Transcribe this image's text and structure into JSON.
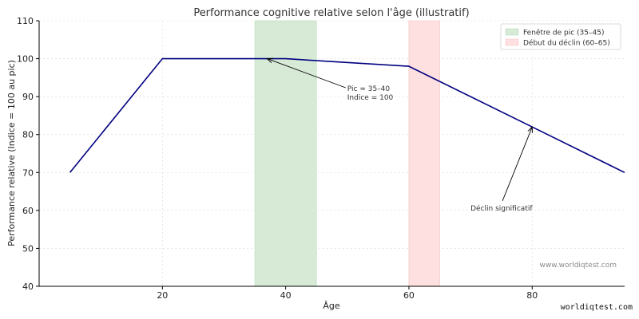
{
  "chart_data": {
    "type": "line",
    "title": "Performance cognitive relative selon l'âge (illustratif)",
    "xlabel": "Âge",
    "ylabel": "Performance relative (Indice = 100 au pic)",
    "xlim": [
      0,
      95
    ],
    "ylim": [
      40,
      110
    ],
    "xticks": [
      20,
      40,
      60,
      80
    ],
    "yticks": [
      40,
      50,
      60,
      70,
      80,
      90,
      100,
      110
    ],
    "grid": true,
    "legend_position": "top-right",
    "series": [
      {
        "color": "#000080",
        "points": [
          [
            5,
            70
          ],
          [
            20,
            100
          ],
          [
            37,
            100
          ],
          [
            40,
            100
          ],
          [
            60,
            98
          ],
          [
            80,
            82
          ],
          [
            95,
            70
          ]
        ]
      }
    ],
    "bands": [
      {
        "label": "Fenêtre de pic (35–45)",
        "from": 35,
        "to": 45,
        "color": "#d6ead6",
        "edge": "#b9dab9"
      },
      {
        "label": "Début du déclin (60–65)",
        "from": 60,
        "to": 65,
        "color": "#ffe0e0",
        "edge": "#f3c3c3"
      }
    ],
    "annotations": [
      {
        "lines": [
          "Pic ≈ 35–40",
          "Indice = 100"
        ],
        "point": [
          37,
          100
        ],
        "text_at": [
          50,
          91.5
        ]
      },
      {
        "lines": [
          "Déclin significatif"
        ],
        "point": [
          80,
          82
        ],
        "text_at": [
          70,
          60
        ]
      }
    ],
    "watermark": "www.worldiqtest.com"
  },
  "footer_mark": "worldiqtest.com"
}
